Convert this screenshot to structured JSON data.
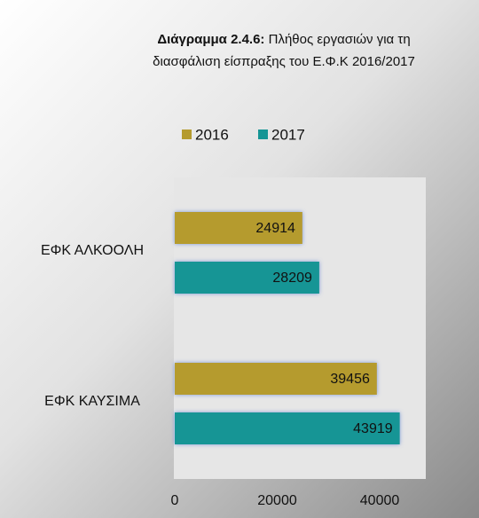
{
  "chart_data": {
    "type": "barh",
    "title_prefix": "Διάγραμμα 2.4.6:",
    "title": "Πλήθος εργασιών για τη διασφάλιση είσπραξης του Ε.Φ.Κ 2016/2017",
    "categories": [
      "ΕΦΚ ΑΛΚΟΟΛΗ",
      "ΕΦΚ ΚΑΥΣΙΜΑ"
    ],
    "series": [
      {
        "name": "2016",
        "color": "#b59b2e",
        "values": [
          24914,
          39456
        ]
      },
      {
        "name": "2017",
        "color": "#159595",
        "values": [
          28209,
          43919
        ]
      }
    ],
    "xlim": [
      0,
      49000
    ],
    "xticks": [
      0,
      20000,
      40000
    ],
    "grid": false,
    "legend": "top"
  }
}
